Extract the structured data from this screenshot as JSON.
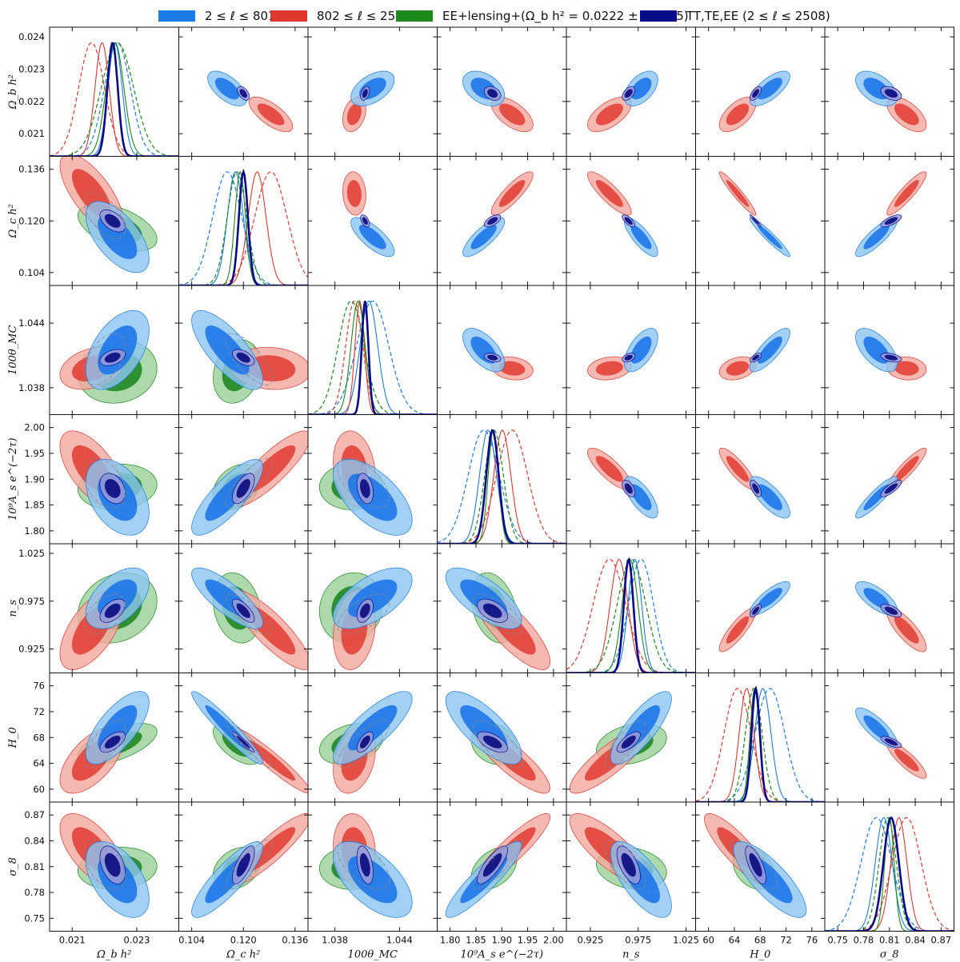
{
  "legend": [
    {
      "label": "2 ≤ ℓ ≤ 801",
      "color": "#1a7ce6"
    },
    {
      "label": "802 ≤ ℓ ≤ 2508",
      "color": "#e0382f"
    },
    {
      "label": "EE+lensing+(Ω_b h² = 0.0222 ± 0.0005)",
      "color": "#1a8a1a"
    },
    {
      "label": "TT,TE,EE (2 ≤ ℓ  ≤ 2508)",
      "color": "#0a0a8a"
    }
  ],
  "chart_data": {
    "type": "triangle-corner",
    "grid": false,
    "legend_placement": "top",
    "parameters": [
      {
        "name": "omegabh2",
        "label": "Ω_b h²",
        "range": [
          0.0203,
          0.0243
        ],
        "ticks": [
          0.021,
          0.023
        ],
        "tick_labels": [
          "0.021",
          "0.023"
        ],
        "row_ticks": [
          0.021,
          0.022,
          0.023,
          0.024
        ],
        "row_tick_labels": [
          "0.021",
          "0.022",
          "0.023",
          "0.024"
        ]
      },
      {
        "name": "omegach2",
        "label": "Ω_c h²",
        "range": [
          0.1,
          0.14
        ],
        "ticks": [
          0.104,
          0.12,
          0.136
        ],
        "tick_labels": [
          "0.104",
          "0.120",
          "0.136"
        ],
        "row_ticks": [
          0.104,
          0.12,
          0.136
        ],
        "row_tick_labels": [
          "0.104",
          "0.120",
          "0.136"
        ]
      },
      {
        "name": "theta",
        "label": "100θ_MC",
        "range": [
          1.0355,
          1.0475
        ],
        "ticks": [
          1.038,
          1.044
        ],
        "tick_labels": [
          "1.038",
          "1.044"
        ],
        "row_ticks": [
          1.038,
          1.044
        ],
        "row_tick_labels": [
          "1.038",
          "1.044"
        ]
      },
      {
        "name": "Ase",
        "label": "10⁹A_s e^(−2τ)",
        "range": [
          1.775,
          2.025
        ],
        "ticks": [
          1.8,
          1.85,
          1.9,
          1.95,
          2.0
        ],
        "tick_labels": [
          "1.80",
          "1.85",
          "1.90",
          "1.95",
          "2.00"
        ],
        "row_ticks": [
          1.8,
          1.85,
          1.9,
          1.95,
          2.0
        ],
        "row_tick_labels": [
          "1.80",
          "1.85",
          "1.90",
          "1.95",
          "2.00"
        ]
      },
      {
        "name": "ns",
        "label": "n_s",
        "range": [
          0.9,
          1.035
        ],
        "ticks": [
          0.925,
          0.975,
          1.025
        ],
        "tick_labels": [
          "0.925",
          "0.975",
          "1.025"
        ],
        "row_ticks": [
          0.925,
          0.975,
          1.025
        ],
        "row_tick_labels": [
          "0.925",
          "0.975",
          "1.025"
        ]
      },
      {
        "name": "H0",
        "label": "H_0",
        "range": [
          58,
          78
        ],
        "ticks": [
          60,
          64,
          68,
          72,
          76
        ],
        "tick_labels": [
          "60",
          "64",
          "68",
          "72",
          "76"
        ],
        "row_ticks": [
          60,
          64,
          68,
          72,
          76
        ],
        "row_tick_labels": [
          "60",
          "64",
          "68",
          "72",
          "76"
        ]
      },
      {
        "name": "sigma8",
        "label": "σ_8",
        "range": [
          0.735,
          0.885
        ],
        "ticks": [
          0.75,
          0.78,
          0.81,
          0.84,
          0.87
        ],
        "tick_labels": [
          "0.75",
          "0.78",
          "0.81",
          "0.84",
          "0.87"
        ],
        "row_ticks": [
          0.75,
          0.78,
          0.81,
          0.84,
          0.87
        ],
        "row_tick_labels": [
          "0.75",
          "0.78",
          "0.81",
          "0.84",
          "0.87"
        ]
      }
    ],
    "series": [
      {
        "name": "2 ≤ ℓ ≤ 801",
        "color": "#1a7ce6",
        "inner": "#1f77e8",
        "outer": "#8cc4f2",
        "mean": [
          0.0224,
          0.115,
          1.0415,
          1.865,
          0.978,
          69.5,
          0.795
        ],
        "sigma": [
          0.0004,
          0.0045,
          0.0015,
          0.03,
          0.013,
          2.3,
          0.018
        ],
        "corr": [
          [
            1,
            -0.6,
            0.5,
            -0.4,
            0.5,
            0.7,
            -0.5
          ],
          [
            -0.6,
            1,
            -0.75,
            0.8,
            -0.8,
            -0.95,
            0.85
          ],
          [
            0.5,
            -0.75,
            1,
            -0.6,
            0.6,
            0.8,
            -0.6
          ],
          [
            -0.4,
            0.8,
            -0.6,
            1,
            -0.7,
            -0.75,
            0.9
          ],
          [
            0.5,
            -0.8,
            0.6,
            -0.7,
            1,
            0.8,
            -0.7
          ],
          [
            0.7,
            -0.95,
            0.8,
            -0.75,
            0.8,
            1,
            -0.8
          ],
          [
            -0.5,
            0.85,
            -0.6,
            0.9,
            -0.7,
            -0.8,
            1
          ]
        ],
        "marginal_style": "dashed"
      },
      {
        "name": "802 ≤ ℓ ≤ 2508",
        "color": "#e0382f",
        "inner": "#e3443b",
        "outer": "#f2a89f",
        "mean": [
          0.0216,
          0.1285,
          1.0398,
          1.92,
          0.945,
          64.5,
          0.83
        ],
        "sigma": [
          0.0004,
          0.005,
          0.0008,
          0.03,
          0.017,
          2.1,
          0.017
        ],
        "corr": [
          [
            1,
            -0.7,
            0.3,
            -0.6,
            0.6,
            0.6,
            -0.6
          ],
          [
            -0.7,
            1,
            -0.1,
            0.85,
            -0.85,
            -0.95,
            0.9
          ],
          [
            0.3,
            -0.1,
            1,
            -0.2,
            0.2,
            0.3,
            -0.1
          ],
          [
            -0.6,
            0.85,
            -0.2,
            1,
            -0.8,
            -0.85,
            0.9
          ],
          [
            0.6,
            -0.85,
            0.2,
            -0.8,
            1,
            0.85,
            -0.8
          ],
          [
            0.6,
            -0.95,
            0.3,
            -0.85,
            0.85,
            1,
            -0.85
          ],
          [
            -0.6,
            0.9,
            -0.1,
            0.9,
            -0.8,
            -0.85,
            1
          ]
        ],
        "marginal_style": "dashed"
      },
      {
        "name": "EE+lensing+(Ω_b h² = 0.0222 ± 0.0005)",
        "color": "#1a8a1a",
        "inner": "#238a23",
        "outer": "#98cf98",
        "mean": [
          0.0224,
          0.118,
          1.0395,
          1.885,
          0.968,
          67.0,
          0.808
        ],
        "sigma": [
          0.0005,
          0.003,
          0.0012,
          0.018,
          0.015,
          1.3,
          0.01
        ],
        "corr": [
          [
            1,
            -0.5,
            0.1,
            0.1,
            0.2,
            0.6,
            0.1
          ],
          [
            -0.5,
            1,
            0.2,
            0.3,
            -0.2,
            -0.6,
            0.3
          ],
          [
            0.1,
            0.2,
            1,
            0.0,
            0.1,
            0.3,
            0.0
          ],
          [
            0.1,
            0.3,
            0.0,
            1,
            -0.3,
            -0.2,
            0.4
          ],
          [
            0.2,
            -0.2,
            0.1,
            -0.3,
            1,
            0.3,
            -0.2
          ],
          [
            0.6,
            -0.6,
            0.3,
            -0.2,
            0.3,
            1,
            -0.3
          ],
          [
            0.1,
            0.3,
            0.0,
            0.4,
            -0.2,
            -0.3,
            1
          ]
        ],
        "marginal_style": "dashed"
      },
      {
        "name": "TT,TE,EE (2 ≤ ℓ  ≤ 2508)",
        "color": "#0a0a8a",
        "inner": "#0d0d80",
        "outer": "#9a9ad6",
        "mean": [
          0.02225,
          0.12,
          1.0408,
          1.882,
          0.965,
          67.3,
          0.812
        ],
        "sigma": [
          0.00016,
          0.0014,
          0.00031,
          0.012,
          0.005,
          0.65,
          0.009
        ],
        "corr": [
          [
            1,
            -0.5,
            0.4,
            -0.3,
            0.5,
            0.6,
            -0.4
          ],
          [
            -0.5,
            1,
            -0.5,
            0.6,
            -0.7,
            -0.95,
            0.7
          ],
          [
            0.4,
            -0.5,
            1,
            -0.3,
            0.4,
            0.6,
            -0.4
          ],
          [
            -0.3,
            0.6,
            -0.3,
            1,
            -0.5,
            -0.6,
            0.8
          ],
          [
            0.5,
            -0.7,
            0.4,
            -0.5,
            1,
            0.7,
            -0.6
          ],
          [
            0.6,
            -0.95,
            0.6,
            -0.6,
            0.7,
            1,
            -0.7
          ],
          [
            -0.4,
            0.7,
            -0.4,
            0.8,
            -0.6,
            -0.7,
            1
          ]
        ],
        "marginal_style": "solid"
      }
    ]
  }
}
